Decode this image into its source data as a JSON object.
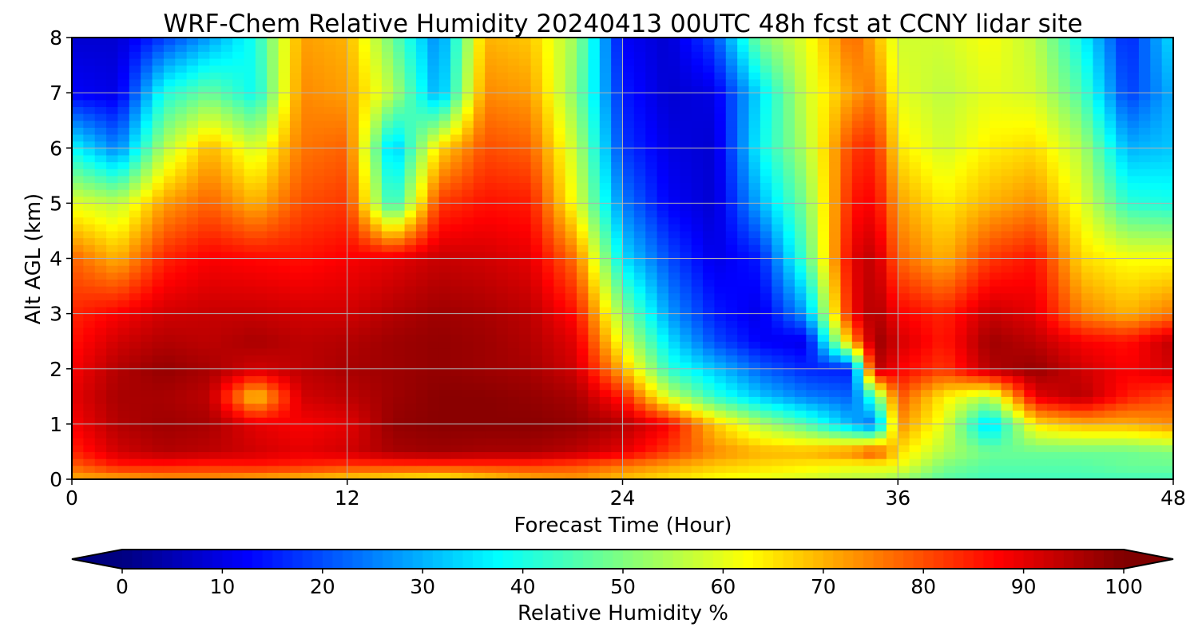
{
  "chart_data": {
    "type": "heatmap",
    "title": "WRF-Chem Relative Humidity 20240413 00UTC 48h fcst at CCNY lidar site",
    "xlabel": "Forecast Time (Hour)",
    "ylabel": "Alt AGL (km)",
    "xlim": [
      0,
      48
    ],
    "ylim": [
      0,
      8
    ],
    "xticks": [
      0,
      12,
      24,
      36,
      48
    ],
    "yticks": [
      0,
      1,
      2,
      3,
      4,
      5,
      6,
      7,
      8
    ],
    "grid": true,
    "colormap": "jet",
    "colorbar": {
      "label": "Relative Humidity %",
      "range": [
        0,
        100
      ],
      "ticks": [
        0,
        10,
        20,
        30,
        40,
        50,
        60,
        70,
        80,
        90,
        100
      ],
      "extend": "both",
      "placement": "bottom"
    },
    "x": [
      0,
      2,
      4,
      6,
      8,
      10,
      12,
      14,
      16,
      18,
      20,
      22,
      24,
      26,
      28,
      30,
      32,
      34,
      35,
      36,
      38,
      40,
      42,
      44,
      46,
      48
    ],
    "y": [
      0,
      0.25,
      0.5,
      1,
      1.5,
      2,
      2.5,
      3,
      4,
      5,
      6,
      7,
      8
    ],
    "z": [
      [
        70,
        70,
        72,
        72,
        70,
        68,
        66,
        64,
        62,
        66,
        70,
        72,
        68,
        65,
        62,
        60,
        58,
        55,
        55,
        52,
        46,
        44,
        44,
        44,
        44,
        44
      ],
      [
        78,
        85,
        85,
        84,
        85,
        84,
        82,
        82,
        82,
        82,
        82,
        80,
        76,
        72,
        68,
        66,
        64,
        62,
        62,
        62,
        50,
        46,
        46,
        46,
        48,
        48
      ],
      [
        84,
        92,
        95,
        94,
        92,
        90,
        92,
        96,
        97,
        96,
        96,
        94,
        90,
        82,
        74,
        70,
        70,
        75,
        82,
        66,
        55,
        48,
        48,
        48,
        48,
        50
      ],
      [
        88,
        95,
        97,
        96,
        90,
        88,
        90,
        98,
        99,
        99,
        99,
        98,
        95,
        88,
        68,
        55,
        45,
        30,
        22,
        74,
        60,
        32,
        65,
        70,
        70,
        74
      ],
      [
        90,
        96,
        96,
        94,
        66,
        92,
        94,
        97,
        99,
        99,
        98,
        96,
        85,
        58,
        42,
        32,
        25,
        22,
        45,
        80,
        64,
        55,
        90,
        95,
        85,
        80
      ],
      [
        88,
        95,
        98,
        96,
        92,
        94,
        96,
        97,
        98,
        97,
        96,
        92,
        70,
        42,
        32,
        22,
        16,
        15,
        95,
        88,
        82,
        95,
        98,
        92,
        88,
        92
      ],
      [
        86,
        92,
        95,
        94,
        96,
        94,
        95,
        97,
        98,
        97,
        95,
        90,
        60,
        35,
        20,
        12,
        10,
        72,
        98,
        92,
        85,
        97,
        94,
        88,
        86,
        94
      ],
      [
        84,
        88,
        92,
        93,
        93,
        92,
        92,
        95,
        97,
        96,
        94,
        86,
        52,
        28,
        15,
        10,
        28,
        88,
        96,
        88,
        84,
        93,
        90,
        75,
        70,
        76
      ],
      [
        78,
        70,
        84,
        88,
        87,
        86,
        88,
        90,
        93,
        92,
        90,
        76,
        35,
        20,
        10,
        15,
        45,
        90,
        94,
        78,
        70,
        82,
        86,
        66,
        62,
        62
      ],
      [
        60,
        56,
        72,
        78,
        70,
        80,
        82,
        40,
        82,
        86,
        85,
        60,
        25,
        12,
        8,
        30,
        50,
        86,
        88,
        72,
        64,
        70,
        74,
        60,
        42,
        40
      ],
      [
        38,
        25,
        55,
        70,
        58,
        76,
        78,
        30,
        66,
        80,
        78,
        56,
        18,
        10,
        8,
        38,
        55,
        82,
        84,
        65,
        58,
        64,
        66,
        55,
        30,
        32
      ],
      [
        12,
        10,
        40,
        48,
        38,
        74,
        72,
        55,
        28,
        74,
        72,
        50,
        15,
        8,
        10,
        35,
        58,
        72,
        76,
        60,
        56,
        60,
        58,
        45,
        18,
        30
      ],
      [
        8,
        8,
        18,
        28,
        40,
        72,
        70,
        48,
        25,
        70,
        68,
        52,
        12,
        8,
        20,
        50,
        60,
        78,
        70,
        58,
        58,
        62,
        56,
        38,
        15,
        35
      ]
    ]
  }
}
